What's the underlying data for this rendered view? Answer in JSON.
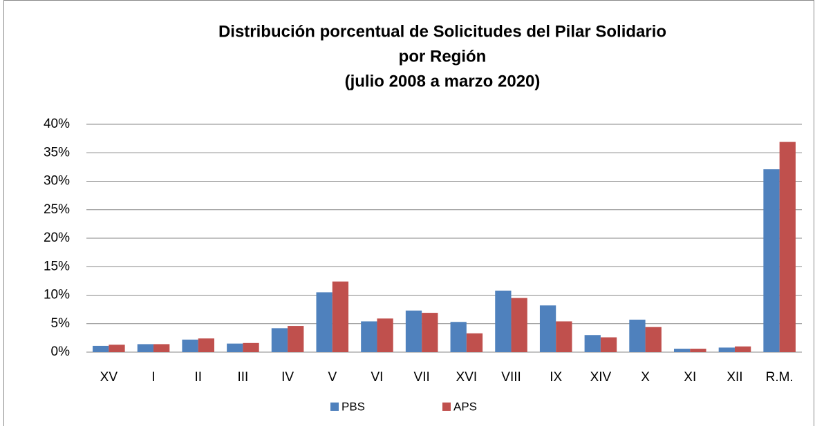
{
  "chart_data": {
    "type": "bar",
    "title": [
      "Distribución porcentual de Solicitudes del Pilar Solidario",
      "por Región",
      "(julio 2008 a marzo 2020)"
    ],
    "categories": [
      "XV",
      "I",
      "II",
      "III",
      "IV",
      "V",
      "VI",
      "VII",
      "XVI",
      "VIII",
      "IX",
      "XIV",
      "X",
      "XI",
      "XII",
      "R.M."
    ],
    "series": [
      {
        "name": "PBS",
        "color": "#4f81bd",
        "values": [
          1.1,
          1.4,
          2.2,
          1.5,
          4.2,
          10.5,
          5.4,
          7.3,
          5.3,
          10.8,
          8.2,
          3.0,
          5.7,
          0.6,
          0.8,
          32.1
        ]
      },
      {
        "name": "APS",
        "color": "#c0504d",
        "values": [
          1.3,
          1.4,
          2.4,
          1.6,
          4.6,
          12.4,
          5.9,
          6.9,
          3.3,
          9.5,
          5.4,
          2.6,
          4.4,
          0.6,
          1.0,
          36.9
        ]
      }
    ],
    "ylim": [
      0,
      40
    ],
    "yticks": [
      {
        "value": 0,
        "label": "0%"
      },
      {
        "value": 5,
        "label": "5%"
      },
      {
        "value": 10,
        "label": "10%"
      },
      {
        "value": 15,
        "label": "15%"
      },
      {
        "value": 20,
        "label": "20%"
      },
      {
        "value": 25,
        "label": "25%"
      },
      {
        "value": 30,
        "label": "30%"
      },
      {
        "value": 35,
        "label": "35%"
      },
      {
        "value": 40,
        "label": "40%"
      }
    ],
    "grid": true,
    "legend": "bottom"
  }
}
